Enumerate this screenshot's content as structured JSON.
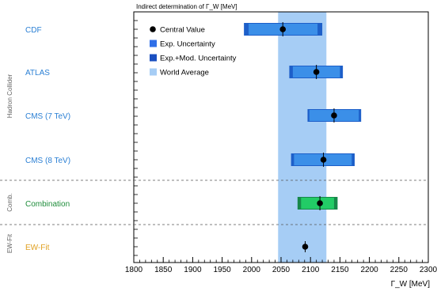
{
  "chart_data": {
    "type": "scatter",
    "title": "Indirect determination of Γ_W [MeV]",
    "xlabel": "Γ_W [MeV]",
    "xlim": [
      1800,
      2300
    ],
    "xticks": [
      1800,
      1850,
      1900,
      1950,
      2000,
      2050,
      2100,
      2150,
      2200,
      2250,
      2300
    ],
    "world_average_band": {
      "low": 2045,
      "high": 2127
    },
    "groups": [
      {
        "label": "Hadron Collider",
        "rows": [
          0,
          1,
          2,
          3
        ]
      },
      {
        "label": "Comb.",
        "rows": [
          4
        ]
      },
      {
        "label": "EW-Fit",
        "rows": [
          5
        ]
      }
    ],
    "measurements": [
      {
        "label": "CDF",
        "label_color": "#2a7fd4",
        "central": 2053,
        "exp_low": 1995,
        "exp_high": 2112,
        "mod_low": 1987,
        "mod_high": 2120,
        "exp_color": "#3b8fe8",
        "mod_color": "#1d5fc9"
      },
      {
        "label": "ATLAS",
        "label_color": "#2a7fd4",
        "central": 2110,
        "exp_low": 2070,
        "exp_high": 2150,
        "mod_low": 2064,
        "mod_high": 2155,
        "exp_color": "#3b8fe8",
        "mod_color": "#1d5fc9"
      },
      {
        "label": "CMS (7 TeV)",
        "label_color": "#2a7fd4",
        "central": 2140,
        "exp_low": 2098,
        "exp_high": 2182,
        "mod_low": 2095,
        "mod_high": 2186,
        "exp_color": "#3b8fe8",
        "mod_color": "#1d5fc9"
      },
      {
        "label": "CMS (8 TeV)",
        "label_color": "#2a7fd4",
        "central": 2122,
        "exp_low": 2072,
        "exp_high": 2170,
        "mod_low": 2067,
        "mod_high": 2175,
        "exp_color": "#3b8fe8",
        "mod_color": "#1d5fc9"
      },
      {
        "label": "Combination",
        "label_color": "#1e8c3a",
        "central": 2116,
        "exp_low": 2084,
        "exp_high": 2140,
        "mod_low": 2078,
        "mod_high": 2146,
        "exp_color": "#22cc66",
        "mod_color": "#17884a"
      },
      {
        "label": "EW-Fit",
        "label_color": "#e0a020",
        "central": 2091,
        "err_low": 2087,
        "err_high": 2095
      }
    ],
    "legend": {
      "position": "top-left",
      "entries": [
        {
          "label": "Central Value",
          "symbol": "dot",
          "color": "#000000"
        },
        {
          "label": "Exp. Uncertainty",
          "symbol": "square",
          "color": "#2f6fe8"
        },
        {
          "label": "Exp.+Mod. Uncertainty",
          "symbol": "square",
          "color": "#1a4fc0"
        },
        {
          "label": "World Average",
          "symbol": "square",
          "color": "#a6cdf5"
        }
      ]
    },
    "colors": {
      "band": "#a6cdf5",
      "axis": "#000000",
      "separator": "#555555"
    }
  }
}
